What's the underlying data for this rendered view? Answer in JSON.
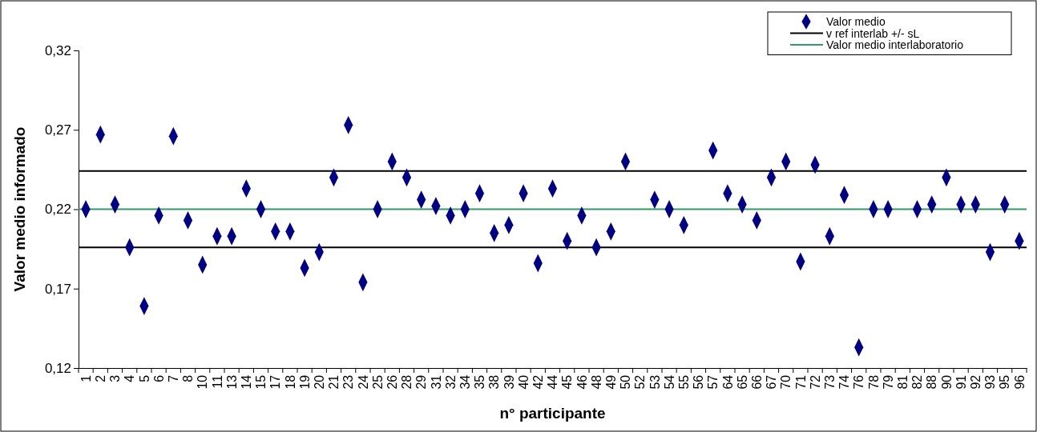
{
  "chart_data": {
    "type": "scatter",
    "xlabel": "n° participante",
    "ylabel": "Valor medio informado",
    "categories": [
      "1",
      "2",
      "3",
      "4",
      "5",
      "6",
      "7",
      "8",
      "10",
      "11",
      "13",
      "14",
      "15",
      "17",
      "18",
      "19",
      "20",
      "21",
      "23",
      "24",
      "25",
      "26",
      "28",
      "29",
      "31",
      "32",
      "34",
      "35",
      "38",
      "39",
      "40",
      "42",
      "44",
      "45",
      "46",
      "48",
      "49",
      "50",
      "52",
      "53",
      "54",
      "55",
      "56",
      "57",
      "64",
      "65",
      "66",
      "67",
      "70",
      "71",
      "72",
      "73",
      "74",
      "76",
      "78",
      "79",
      "81",
      "82",
      "88",
      "90",
      "91",
      "92",
      "93",
      "95",
      "96"
    ],
    "series": [
      {
        "name": "Valor medio",
        "color": "#000080",
        "values": [
          0.22,
          0.267,
          0.223,
          0.196,
          0.159,
          0.216,
          0.266,
          0.213,
          0.185,
          0.203,
          0.203,
          0.233,
          0.22,
          0.206,
          0.206,
          0.183,
          0.193,
          0.24,
          0.273,
          0.174,
          0.22,
          0.25,
          0.24,
          0.226,
          0.222,
          0.216,
          0.22,
          0.23,
          0.205,
          0.21,
          0.23,
          0.186,
          0.233,
          0.2,
          0.216,
          0.196,
          0.206,
          0.25,
          null,
          0.226,
          0.22,
          0.21,
          null,
          0.257,
          0.23,
          0.223,
          0.213,
          0.24,
          0.25,
          0.187,
          0.248,
          0.203,
          0.229,
          0.133,
          0.22,
          0.22,
          null,
          0.22,
          0.223,
          0.24,
          0.223,
          0.223,
          0.193,
          0.223,
          0.2
        ]
      }
    ],
    "marker": "diamond",
    "ref_lines": [
      {
        "axis": "y",
        "value": 0.244,
        "label": "v ref interlab +/- sL",
        "color": "#000000"
      },
      {
        "axis": "y",
        "value": 0.196,
        "label": null,
        "color": "#000000"
      },
      {
        "axis": "y",
        "value": 0.22,
        "label": "Valor medio interlaboratorio",
        "color": "#339966"
      }
    ],
    "ylim": [
      0.12,
      0.32
    ],
    "yticks": [
      {
        "value": 0.12,
        "label": "0,12"
      },
      {
        "value": 0.17,
        "label": "0,17"
      },
      {
        "value": 0.22,
        "label": "0,22"
      },
      {
        "value": 0.27,
        "label": "0,27"
      },
      {
        "value": 0.32,
        "label": "0,32"
      }
    ],
    "grid": false,
    "legend": "top right"
  }
}
